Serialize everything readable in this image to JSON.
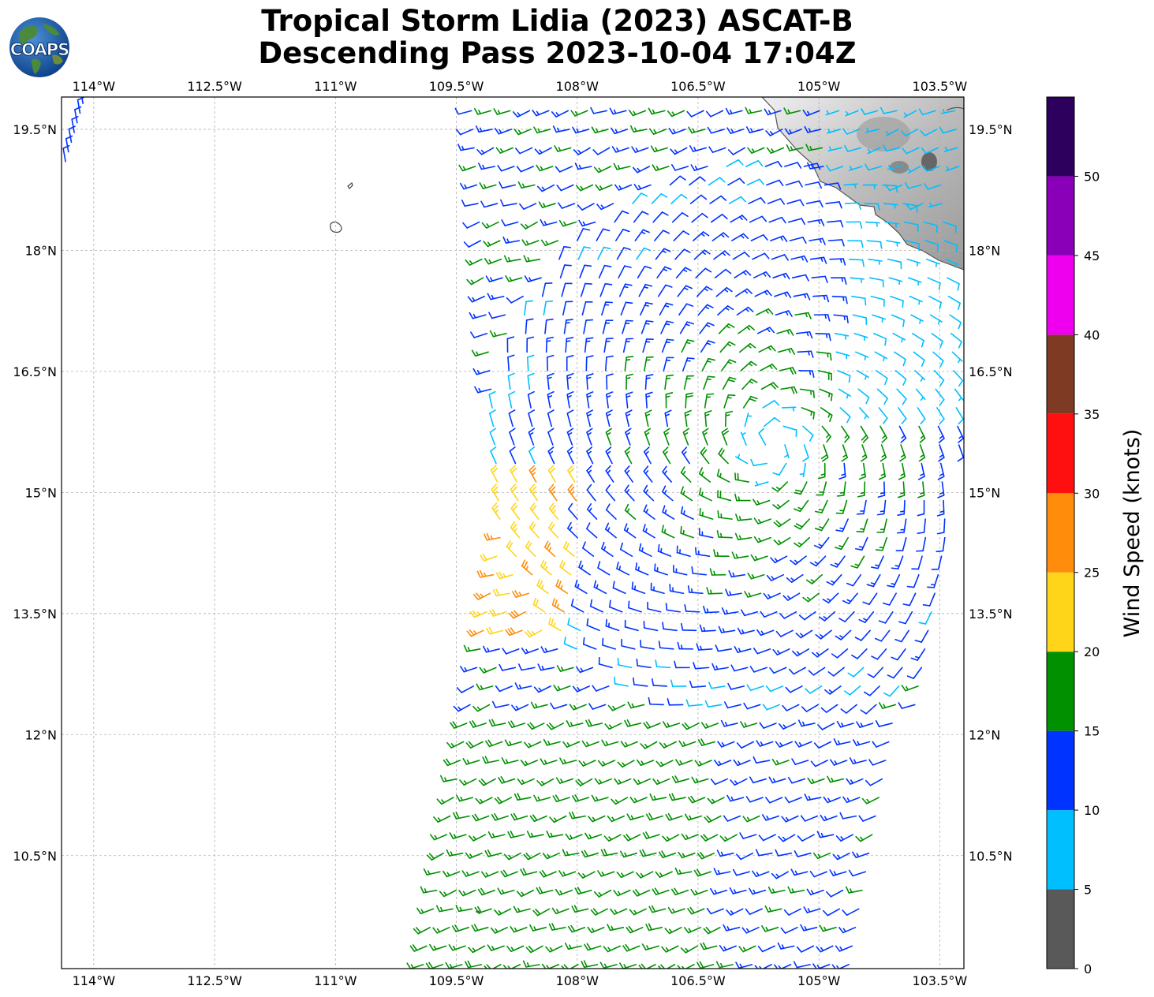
{
  "title": {
    "line1": "Tropical Storm Lidia (2023) ASCAT-B",
    "line2": "Descending Pass 2023-10-04 17:04Z"
  },
  "logo": {
    "text": "COAPS"
  },
  "map": {
    "lon_range": [
      -114.4,
      -103.2
    ],
    "lat_range": [
      9.1,
      19.9
    ],
    "lon_ticks": [
      {
        "value": -114,
        "label": "114°W"
      },
      {
        "value": -112.5,
        "label": "112.5°W"
      },
      {
        "value": -111,
        "label": "111°W"
      },
      {
        "value": -109.5,
        "label": "109.5°W"
      },
      {
        "value": -108,
        "label": "108°W"
      },
      {
        "value": -106.5,
        "label": "106.5°W"
      },
      {
        "value": -105,
        "label": "105°W"
      },
      {
        "value": -103.5,
        "label": "103.5°W"
      }
    ],
    "lat_ticks": [
      {
        "value": 19.5,
        "label": "19.5°N"
      },
      {
        "value": 18,
        "label": "18°N"
      },
      {
        "value": 16.5,
        "label": "16.5°N"
      },
      {
        "value": 15,
        "label": "15°N"
      },
      {
        "value": 13.5,
        "label": "13.5°N"
      },
      {
        "value": 12,
        "label": "12°N"
      },
      {
        "value": 10.5,
        "label": "10.5°N"
      }
    ],
    "storm_center": {
      "lon": -105.6,
      "lat": 15.6
    },
    "gridlines": true
  },
  "colorbar": {
    "label": "Wind Speed (knots)",
    "bins": [
      {
        "from": 0,
        "to": 5,
        "color": "#595959"
      },
      {
        "from": 5,
        "to": 10,
        "color": "#00bfff"
      },
      {
        "from": 10,
        "to": 15,
        "color": "#0033ff"
      },
      {
        "from": 15,
        "to": 20,
        "color": "#009000"
      },
      {
        "from": 20,
        "to": 25,
        "color": "#ffd51a"
      },
      {
        "from": 25,
        "to": 30,
        "color": "#ff8c0a"
      },
      {
        "from": 30,
        "to": 35,
        "color": "#ff1010"
      },
      {
        "from": 35,
        "to": 40,
        "color": "#7f3a24"
      },
      {
        "from": 40,
        "to": 45,
        "color": "#ee00ee"
      },
      {
        "from": 45,
        "to": 50,
        "color": "#8a00b8"
      },
      {
        "from": 50,
        "to": 55,
        "color": "#2e005e"
      }
    ],
    "tick_labels": [
      "0",
      "5",
      "10",
      "15",
      "20",
      "25",
      "30",
      "35",
      "40",
      "45",
      "50"
    ]
  }
}
